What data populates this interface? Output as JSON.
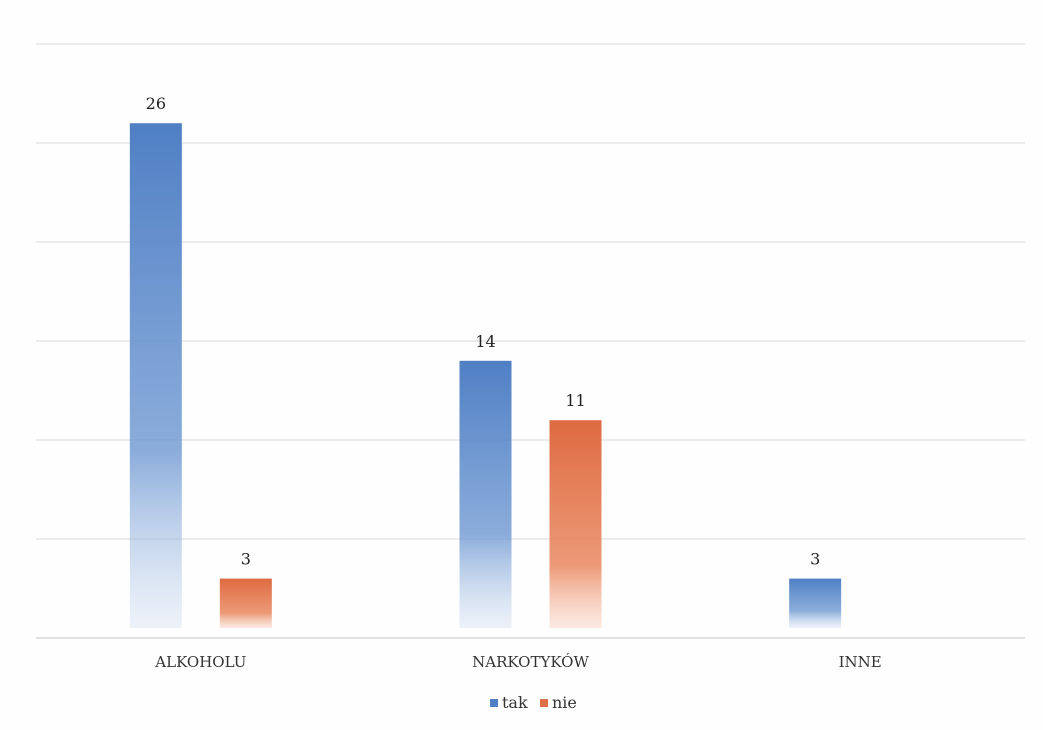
{
  "chart_data": {
    "type": "bar",
    "categories": [
      "ALKOHOLU",
      "NARKOTYKÓW",
      "INNE"
    ],
    "series": [
      {
        "name": "tak",
        "values": [
          26,
          14,
          3
        ]
      },
      {
        "name": "nie",
        "values": [
          3,
          11,
          null
        ]
      }
    ],
    "data_labels": true,
    "ylim": [
      0,
      30
    ],
    "grid": true,
    "y_axis_labels_visible": false,
    "legend": "bottom-center",
    "colors": {
      "tak": "#4f7fc4",
      "nie": "#e07048"
    }
  }
}
